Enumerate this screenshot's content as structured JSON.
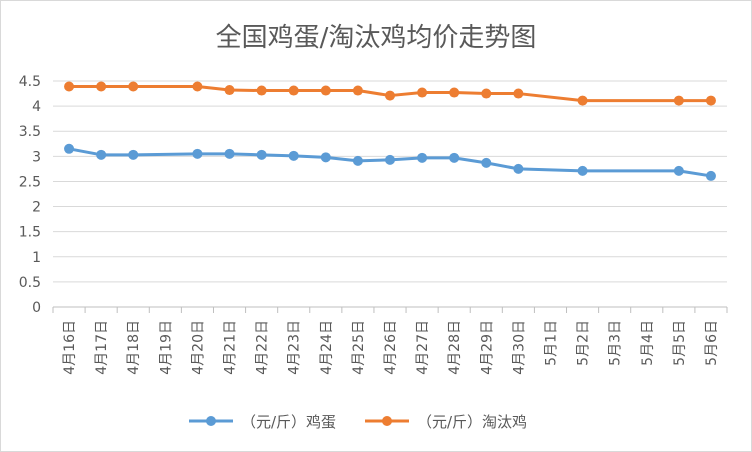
{
  "chart_data": {
    "type": "line",
    "title": "全国鸡蛋/淘汰鸡均价走势图",
    "categories": [
      "4月16日",
      "4月17日",
      "4月18日",
      "4月19日",
      "4月20日",
      "4月21日",
      "4月22日",
      "4月23日",
      "4月24日",
      "4月25日",
      "4月26日",
      "4月27日",
      "4月28日",
      "4月29日",
      "4月30日",
      "5月1日",
      "5月2日",
      "5月3日",
      "5月4日",
      "5月5日",
      "5月6日"
    ],
    "ylim": [
      0,
      4.5
    ],
    "yticks": [
      "0",
      "0.5",
      "1",
      "1.5",
      "2",
      "2.5",
      "3",
      "3.5",
      "4",
      "4.5"
    ],
    "grid": true,
    "legend_position": "bottom",
    "series": [
      {
        "name": "（元/斤）鸡蛋",
        "color": "#5b9bd5",
        "values": [
          3.15,
          3.03,
          3.03,
          null,
          3.05,
          3.05,
          3.03,
          3.01,
          2.98,
          2.91,
          2.93,
          2.97,
          2.97,
          2.87,
          2.75,
          null,
          2.71,
          null,
          null,
          2.71,
          2.61
        ]
      },
      {
        "name": "（元/斤）淘汰鸡",
        "color": "#ed7d31",
        "values": [
          4.39,
          4.39,
          4.39,
          null,
          4.39,
          4.32,
          4.31,
          4.31,
          4.31,
          4.31,
          4.21,
          4.27,
          4.27,
          4.25,
          4.25,
          null,
          4.11,
          null,
          null,
          4.11,
          4.11
        ]
      }
    ]
  }
}
